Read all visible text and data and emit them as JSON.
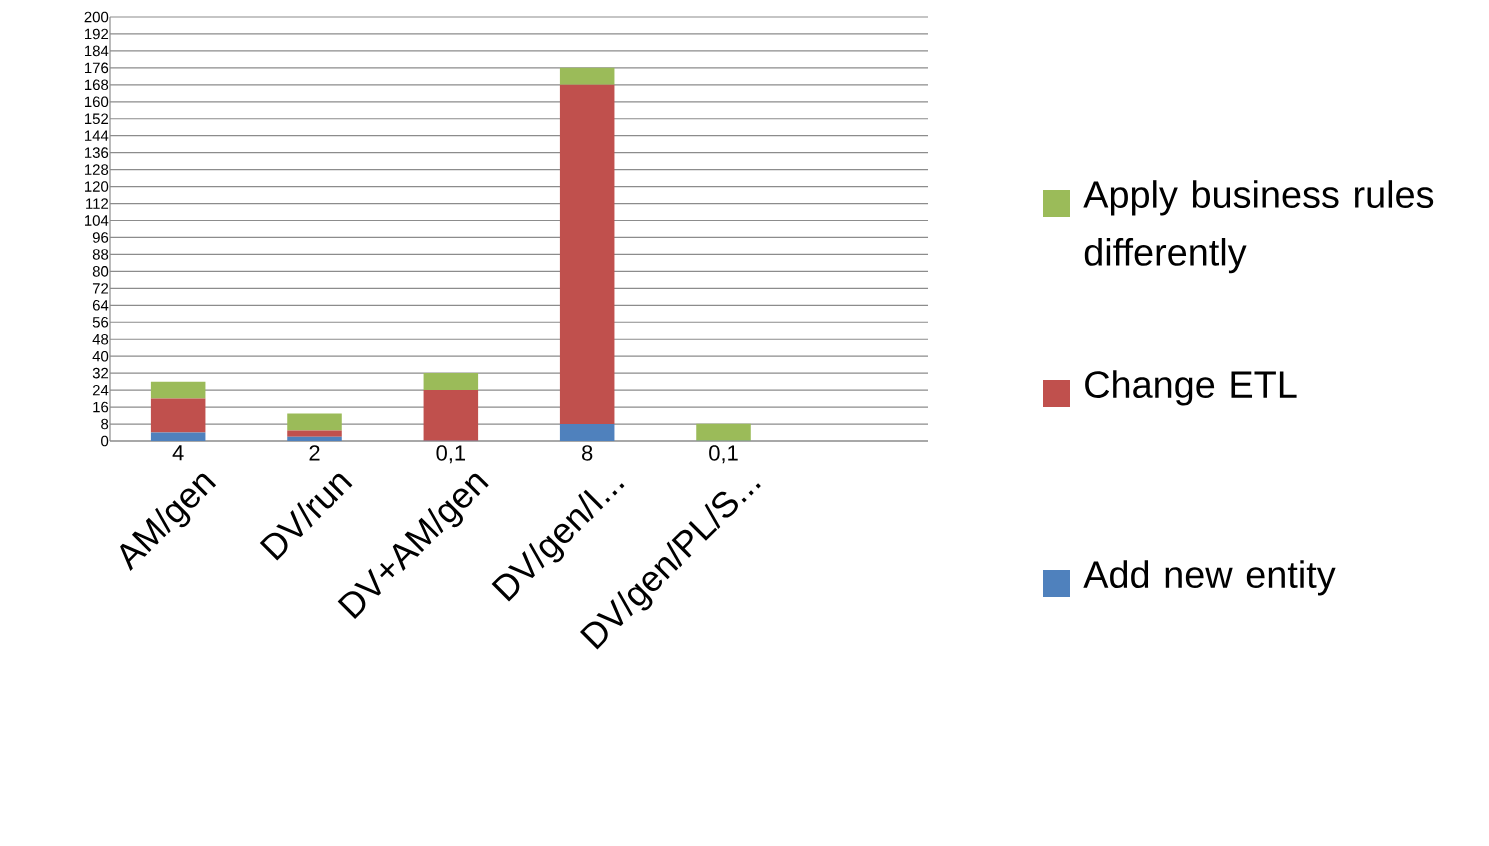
{
  "chart_data": {
    "type": "bar",
    "stacked": true,
    "categories": [
      "AM/gen",
      "DV/run",
      "DV+AM/gen",
      "DV/gen/I...",
      "DV/gen/PL/S...",
      null
    ],
    "series": [
      {
        "name": "Add new entity",
        "color": "#4f81bd",
        "values": [
          4,
          2,
          0.1,
          8,
          0.1,
          null
        ],
        "value_labels": [
          "4",
          "2",
          "0,1",
          "8",
          "0,1",
          null
        ]
      },
      {
        "name": "Change ETL",
        "color": "#c0504d",
        "values": [
          16,
          3,
          24,
          160,
          0,
          null
        ]
      },
      {
        "name": "Apply business rules differently",
        "color": "#9bbb59",
        "values": [
          8,
          8,
          8,
          8,
          8,
          null
        ]
      }
    ],
    "ylim": [
      0,
      200
    ],
    "yticks": [
      0,
      8,
      16,
      24,
      32,
      40,
      48,
      56,
      64,
      72,
      80,
      88,
      96,
      104,
      112,
      120,
      128,
      136,
      144,
      152,
      160,
      168,
      176,
      184,
      192,
      200
    ],
    "grid": "y",
    "legend": "right"
  }
}
